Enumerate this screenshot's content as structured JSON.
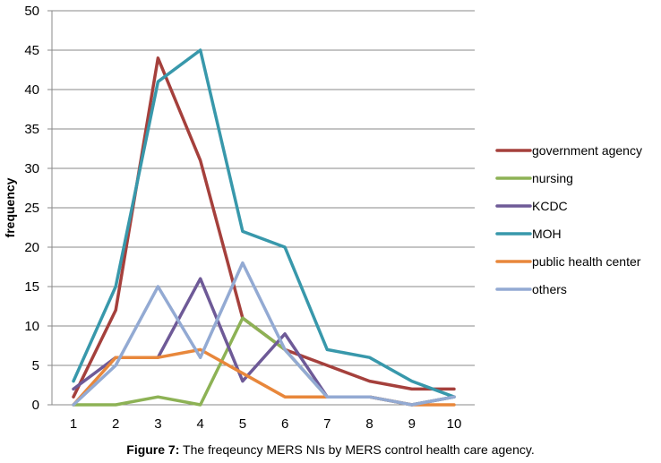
{
  "caption": {
    "label": "Figure 7:",
    "text": "The freqeuncy MERS NIs by MERS control health care agency."
  },
  "chart_data": {
    "type": "line",
    "title": "",
    "xlabel": "",
    "ylabel": "frequency",
    "x": [
      1,
      2,
      3,
      4,
      5,
      6,
      7,
      8,
      9,
      10
    ],
    "ylim": [
      0,
      50
    ],
    "yticks": [
      0,
      5,
      10,
      15,
      20,
      25,
      30,
      35,
      40,
      45,
      50
    ],
    "grid": "horizontal",
    "legend_position": "right",
    "series": [
      {
        "name": "government agency",
        "color": "#A5403C",
        "values": [
          1,
          12,
          44,
          31,
          11,
          7,
          5,
          3,
          2,
          2
        ]
      },
      {
        "name": "nursing",
        "color": "#8DB255",
        "values": [
          0,
          0,
          1,
          0,
          11,
          7,
          1,
          1,
          0,
          1
        ]
      },
      {
        "name": "KCDC",
        "color": "#6E5A97",
        "values": [
          2,
          6,
          6,
          16,
          3,
          9,
          1,
          1,
          0,
          1
        ]
      },
      {
        "name": "MOH",
        "color": "#3898AB",
        "values": [
          3,
          15,
          41,
          45,
          22,
          20,
          7,
          6,
          3,
          1
        ]
      },
      {
        "name": "public health center",
        "color": "#E8873B",
        "values": [
          0,
          6,
          6,
          7,
          4,
          1,
          1,
          1,
          0,
          0
        ]
      },
      {
        "name": "others",
        "color": "#93AAD3",
        "values": [
          0,
          5,
          15,
          6,
          18,
          7,
          1,
          1,
          0,
          1
        ]
      }
    ]
  }
}
